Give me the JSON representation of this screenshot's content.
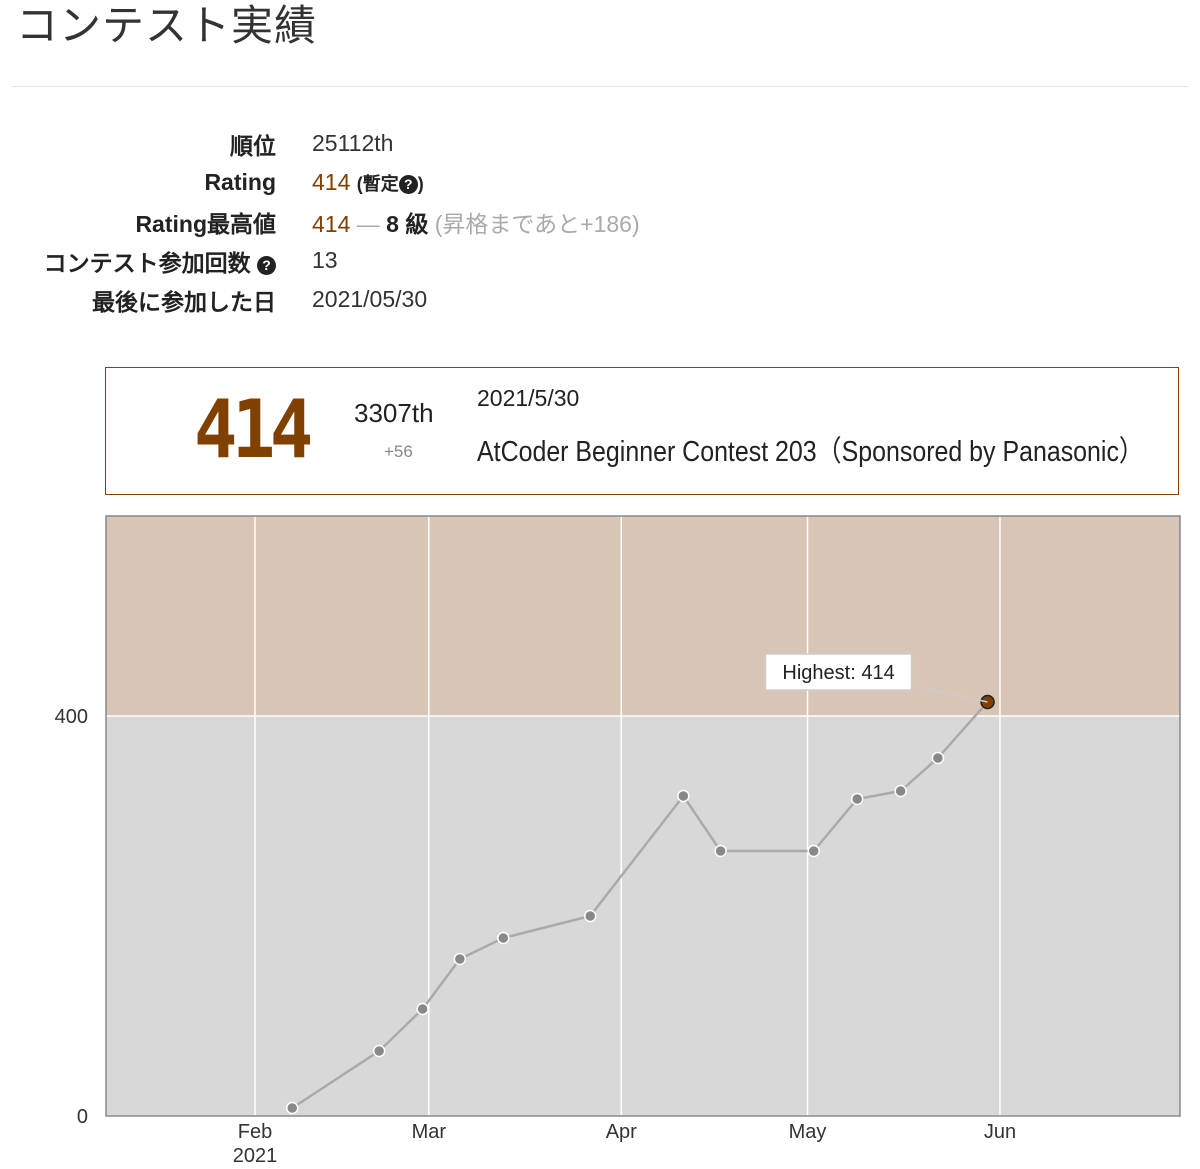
{
  "title": "コンテスト実績",
  "stats": {
    "rank_label": "順位",
    "rank_value": "25112th",
    "rating_label": "Rating",
    "rating_value": "414",
    "provisional": "(暫定",
    "provisional_close": ")",
    "highest_label": "Rating最高値",
    "highest_value": "414",
    "dash": "—",
    "kyu": "8 級",
    "to_next": "(昇格まであと+186)",
    "count_label": "コンテスト参加回数",
    "count_value": "13",
    "last_label": "最後に参加した日",
    "last_value": "2021/05/30"
  },
  "status_box": {
    "rating": "414",
    "place": "3307th",
    "diff": "+56",
    "date": "2021/5/30",
    "contest": "AtCoder Beginner Contest 203（Sponsored by Panasonic）"
  },
  "chart_data": {
    "type": "line",
    "x_ticks": [
      "2021-02-01",
      "2021-03-01",
      "2021-04-01",
      "2021-05-01",
      "2021-06-01"
    ],
    "x_tick_labels": [
      "Feb",
      "Mar",
      "Apr",
      "May",
      "Jun"
    ],
    "x_year_label": "2021",
    "xlim": [
      "2021-01-08",
      "2021-06-30"
    ],
    "ylim": [
      0,
      600
    ],
    "y_ticks": [
      0,
      400
    ],
    "bands": [
      {
        "from": 0,
        "to": 400,
        "color": "#d8d8d8"
      },
      {
        "from": 400,
        "to": 600,
        "color": "#d8c5b5"
      }
    ],
    "series": [
      {
        "x": [
          "2021-02-07",
          "2021-02-21",
          "2021-02-28",
          "2021-03-06",
          "2021-03-13",
          "2021-03-27",
          "2021-04-11",
          "2021-04-17",
          "2021-05-02",
          "2021-05-09",
          "2021-05-16",
          "2021-05-22",
          "2021-05-30"
        ],
        "y": [
          8,
          65,
          107,
          157,
          178,
          200,
          320,
          265,
          265,
          317,
          325,
          358,
          414
        ],
        "line_color": "#aaaaaa",
        "point_color": "#888888",
        "highlight_color": "#804000"
      }
    ],
    "annotation": {
      "text": "Highest: 414",
      "x": "2021-05-30",
      "y": 414
    }
  }
}
